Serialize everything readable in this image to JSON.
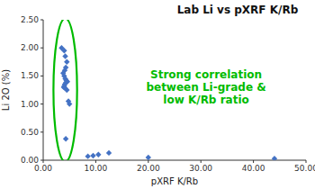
{
  "chart_data": {
    "type": "scatter",
    "title": "Lab Li vs pXRF K/Rb",
    "xlabel": "pXRF K/Rb",
    "ylabel": "Li 2O (%)",
    "xlim": [
      0,
      50
    ],
    "ylim": [
      0,
      2.5
    ],
    "xticks": [
      {
        "value": 0,
        "label": "0.00"
      },
      {
        "value": 10,
        "label": "10.00"
      },
      {
        "value": 20,
        "label": "20.00"
      },
      {
        "value": 30,
        "label": "30.00"
      },
      {
        "value": 40,
        "label": "40.00"
      },
      {
        "value": 50,
        "label": "50.00"
      }
    ],
    "yticks": [
      {
        "value": 0,
        "label": "0.00"
      },
      {
        "value": 0.5,
        "label": "0.50"
      },
      {
        "value": 1,
        "label": "1.00"
      },
      {
        "value": 1.5,
        "label": "1.50"
      },
      {
        "value": 2,
        "label": "2.00"
      },
      {
        "value": 2.5,
        "label": "2.50"
      }
    ],
    "color": "#4472C4",
    "marker": "diamond",
    "x": [
      3.5,
      4.0,
      4.2,
      4.5,
      4.3,
      4.1,
      3.8,
      4.0,
      4.2,
      4.4,
      4.6,
      4.3,
      4.1,
      4.0,
      3.9,
      4.2,
      4.5,
      4.8,
      5.0,
      4.3,
      8.5,
      9.5,
      10.5,
      12.5,
      20.0,
      44.0
    ],
    "values": [
      2.0,
      1.95,
      1.85,
      1.75,
      1.65,
      1.6,
      1.55,
      1.5,
      1.45,
      1.42,
      1.4,
      1.38,
      1.35,
      1.32,
      1.3,
      1.28,
      1.25,
      1.05,
      1.0,
      0.38,
      0.07,
      0.08,
      0.1,
      0.13,
      0.05,
      0.03
    ],
    "ellipse": {
      "cx": 4.2,
      "cy": 1.25,
      "width": 4.5,
      "height": 2.55,
      "color": "#00BB00"
    },
    "annotation": {
      "text": "Strong correlation\nbetween Li-grade &\nlow K/Rb ratio",
      "color": "#00BB00"
    }
  }
}
